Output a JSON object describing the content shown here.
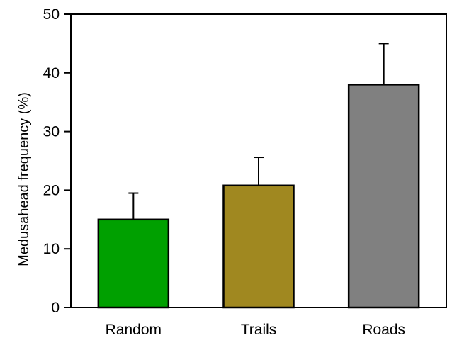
{
  "chart_data": {
    "type": "bar",
    "categories": [
      "Random",
      "Trails",
      "Roads"
    ],
    "values": [
      15,
      20.8,
      38
    ],
    "errors": [
      4.5,
      4.8,
      7
    ],
    "colors": [
      "#00a000",
      "#a08820",
      "#808080"
    ],
    "title": "",
    "xlabel": "",
    "ylabel": "Medusahead frequency (%)",
    "ylim": [
      0,
      50
    ],
    "yticks": [
      "0",
      "10",
      "20",
      "30",
      "40",
      "50"
    ],
    "grid": false,
    "legend": "none"
  }
}
